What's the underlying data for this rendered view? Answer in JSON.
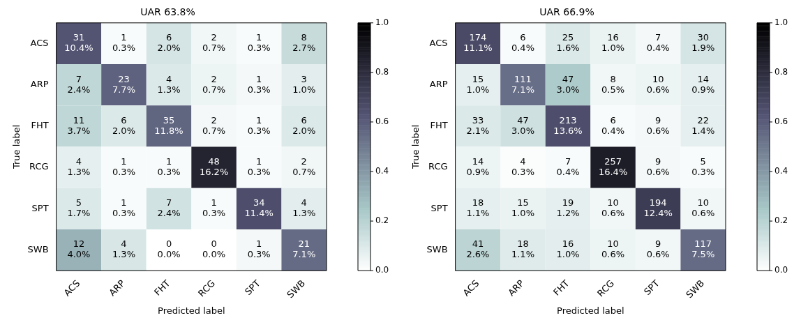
{
  "chart_data": [
    {
      "type": "heatmap",
      "title": "UAR 63.8%",
      "xlabel": "Predicted label",
      "ylabel": "True label",
      "categories": [
        "ACS",
        "ARP",
        "FHT",
        "RCG",
        "SPT",
        "SWB"
      ],
      "y_categories": [
        "ACS",
        "ARP",
        "FHT",
        "RCG",
        "SPT",
        "SWB"
      ],
      "cells": [
        [
          0.63,
          0.02,
          0.12,
          0.04,
          0.02,
          0.16
        ],
        [
          0.18,
          0.58,
          0.1,
          0.05,
          0.03,
          0.08
        ],
        [
          0.18,
          0.1,
          0.57,
          0.03,
          0.02,
          0.1
        ],
        [
          0.07,
          0.02,
          0.02,
          0.84,
          0.02,
          0.04
        ],
        [
          0.1,
          0.02,
          0.13,
          0.02,
          0.65,
          0.08
        ],
        [
          0.32,
          0.11,
          0.0,
          0.0,
          0.03,
          0.55
        ]
      ],
      "cell_labels": [
        [
          "31\n10.4%",
          "1\n0.3%",
          "6\n2.0%",
          "2\n0.7%",
          "1\n0.3%",
          "8\n2.7%"
        ],
        [
          "7\n2.4%",
          "23\n7.7%",
          "4\n1.3%",
          "2\n0.7%",
          "1\n0.3%",
          "3\n1.0%"
        ],
        [
          "11\n3.7%",
          "6\n2.0%",
          "35\n11.8%",
          "2\n0.7%",
          "1\n0.3%",
          "6\n2.0%"
        ],
        [
          "4\n1.3%",
          "1\n0.3%",
          "1\n0.3%",
          "48\n16.2%",
          "1\n0.3%",
          "2\n0.7%"
        ],
        [
          "5\n1.7%",
          "1\n0.3%",
          "7\n2.4%",
          "1\n0.3%",
          "34\n11.4%",
          "4\n1.3%"
        ],
        [
          "12\n4.0%",
          "4\n1.3%",
          "0\n0.0%",
          "0\n0.0%",
          "1\n0.3%",
          "21\n7.1%"
        ]
      ],
      "clim": [
        0,
        1
      ],
      "cticks": [
        {
          "value": 0,
          "label": "0.0"
        },
        {
          "value": 0.2,
          "label": "0.2"
        },
        {
          "value": 0.4,
          "label": "0.4"
        },
        {
          "value": 0.6,
          "label": "0.6"
        },
        {
          "value": 0.8,
          "label": "0.8"
        },
        {
          "value": 1,
          "label": "1.0"
        }
      ]
    },
    {
      "type": "heatmap",
      "title": "UAR 66.9%",
      "xlabel": "Predicted label",
      "ylabel": "True label",
      "categories": [
        "ACS",
        "ARP",
        "FHT",
        "RCG",
        "SPT",
        "SWB"
      ],
      "y_categories": [
        "ACS",
        "ARP",
        "FHT",
        "RCG",
        "SPT",
        "SWB"
      ],
      "cells": [
        [
          0.67,
          0.02,
          0.1,
          0.06,
          0.03,
          0.12
        ],
        [
          0.07,
          0.54,
          0.23,
          0.04,
          0.05,
          0.07
        ],
        [
          0.1,
          0.14,
          0.65,
          0.02,
          0.03,
          0.07
        ],
        [
          0.05,
          0.01,
          0.02,
          0.87,
          0.03,
          0.02
        ],
        [
          0.07,
          0.06,
          0.07,
          0.04,
          0.73,
          0.04
        ],
        [
          0.19,
          0.09,
          0.08,
          0.05,
          0.04,
          0.55
        ]
      ],
      "cell_labels": [
        [
          "174\n11.1%",
          "6\n0.4%",
          "25\n1.6%",
          "16\n1.0%",
          "7\n0.4%",
          "30\n1.9%"
        ],
        [
          "15\n1.0%",
          "111\n7.1%",
          "47\n3.0%",
          "8\n0.5%",
          "10\n0.6%",
          "14\n0.9%"
        ],
        [
          "33\n2.1%",
          "47\n3.0%",
          "213\n13.6%",
          "6\n0.4%",
          "9\n0.6%",
          "22\n1.4%"
        ],
        [
          "14\n0.9%",
          "4\n0.3%",
          "7\n0.4%",
          "257\n16.4%",
          "9\n0.6%",
          "5\n0.3%"
        ],
        [
          "18\n1.1%",
          "15\n1.0%",
          "19\n1.2%",
          "10\n0.6%",
          "194\n12.4%",
          "10\n0.6%"
        ],
        [
          "41\n2.6%",
          "18\n1.1%",
          "16\n1.0%",
          "10\n0.6%",
          "9\n0.6%",
          "117\n7.5%"
        ]
      ],
      "clim": [
        0,
        1
      ],
      "cticks": [
        {
          "value": 0,
          "label": "0.0"
        },
        {
          "value": 0.2,
          "label": "0.2"
        },
        {
          "value": 0.4,
          "label": "0.4"
        },
        {
          "value": 0.6,
          "label": "0.6"
        },
        {
          "value": 0.8,
          "label": "0.8"
        },
        {
          "value": 1,
          "label": "1.0"
        }
      ]
    }
  ]
}
